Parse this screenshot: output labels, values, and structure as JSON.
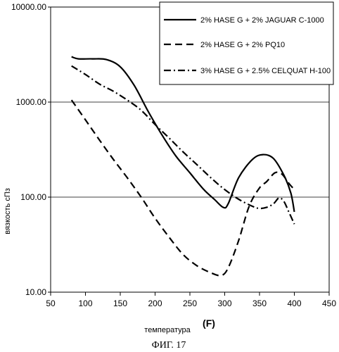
{
  "figure_caption": "ФИГ. 17",
  "chart_data": {
    "type": "line",
    "title": "",
    "xlabel": "температура",
    "xunit": "(F)",
    "ylabel": "вязкость сПз",
    "xlim": [
      50,
      450
    ],
    "ylim": [
      10,
      10000
    ],
    "yscale": "log",
    "xticks": [
      50,
      100,
      150,
      200,
      250,
      300,
      350,
      400,
      450
    ],
    "xtick_labels": [
      "50",
      "100",
      "150",
      "200",
      "250",
      "300",
      "350",
      "400",
      "450"
    ],
    "yticks": [
      10,
      100,
      1000,
      10000
    ],
    "ytick_labels": [
      "10.00",
      "100.00",
      "1000.00",
      "10000.00"
    ],
    "grid": "horizontal",
    "legend_position": "top-right",
    "series": [
      {
        "name": "2% HASE G + 2% JAGUAR C-1000",
        "style": "solid",
        "color": "#000000",
        "points": [
          [
            80,
            3000
          ],
          [
            90,
            2850
          ],
          [
            110,
            2850
          ],
          [
            130,
            2800
          ],
          [
            150,
            2350
          ],
          [
            170,
            1500
          ],
          [
            190,
            800
          ],
          [
            210,
            450
          ],
          [
            230,
            270
          ],
          [
            250,
            180
          ],
          [
            270,
            120
          ],
          [
            285,
            95
          ],
          [
            298,
            78
          ],
          [
            305,
            85
          ],
          [
            320,
            160
          ],
          [
            340,
            250
          ],
          [
            355,
            280
          ],
          [
            370,
            255
          ],
          [
            385,
            170
          ],
          [
            395,
            110
          ],
          [
            400,
            70
          ]
        ]
      },
      {
        "name": "2% HASE G + 2% PQ10",
        "style": "dashed",
        "color": "#000000",
        "points": [
          [
            80,
            1050
          ],
          [
            100,
            650
          ],
          [
            120,
            400
          ],
          [
            140,
            250
          ],
          [
            160,
            160
          ],
          [
            180,
            100
          ],
          [
            200,
            60
          ],
          [
            220,
            38
          ],
          [
            240,
            25
          ],
          [
            260,
            19
          ],
          [
            280,
            16
          ],
          [
            295,
            15
          ],
          [
            305,
            18
          ],
          [
            320,
            35
          ],
          [
            335,
            80
          ],
          [
            350,
            125
          ],
          [
            360,
            145
          ],
          [
            372,
            180
          ],
          [
            382,
            175
          ],
          [
            392,
            140
          ],
          [
            400,
            120
          ]
        ]
      },
      {
        "name": "3% HASE G + 2.5% CELQUAT H-100",
        "style": "dash-dot",
        "color": "#000000",
        "points": [
          [
            80,
            2400
          ],
          [
            100,
            1950
          ],
          [
            120,
            1550
          ],
          [
            140,
            1300
          ],
          [
            160,
            1050
          ],
          [
            180,
            820
          ],
          [
            200,
            580
          ],
          [
            220,
            420
          ],
          [
            240,
            300
          ],
          [
            260,
            220
          ],
          [
            280,
            160
          ],
          [
            300,
            120
          ],
          [
            320,
            95
          ],
          [
            340,
            80
          ],
          [
            350,
            76
          ],
          [
            360,
            78
          ],
          [
            370,
            85
          ],
          [
            378,
            98
          ],
          [
            385,
            90
          ],
          [
            392,
            70
          ],
          [
            400,
            52
          ]
        ]
      }
    ]
  }
}
